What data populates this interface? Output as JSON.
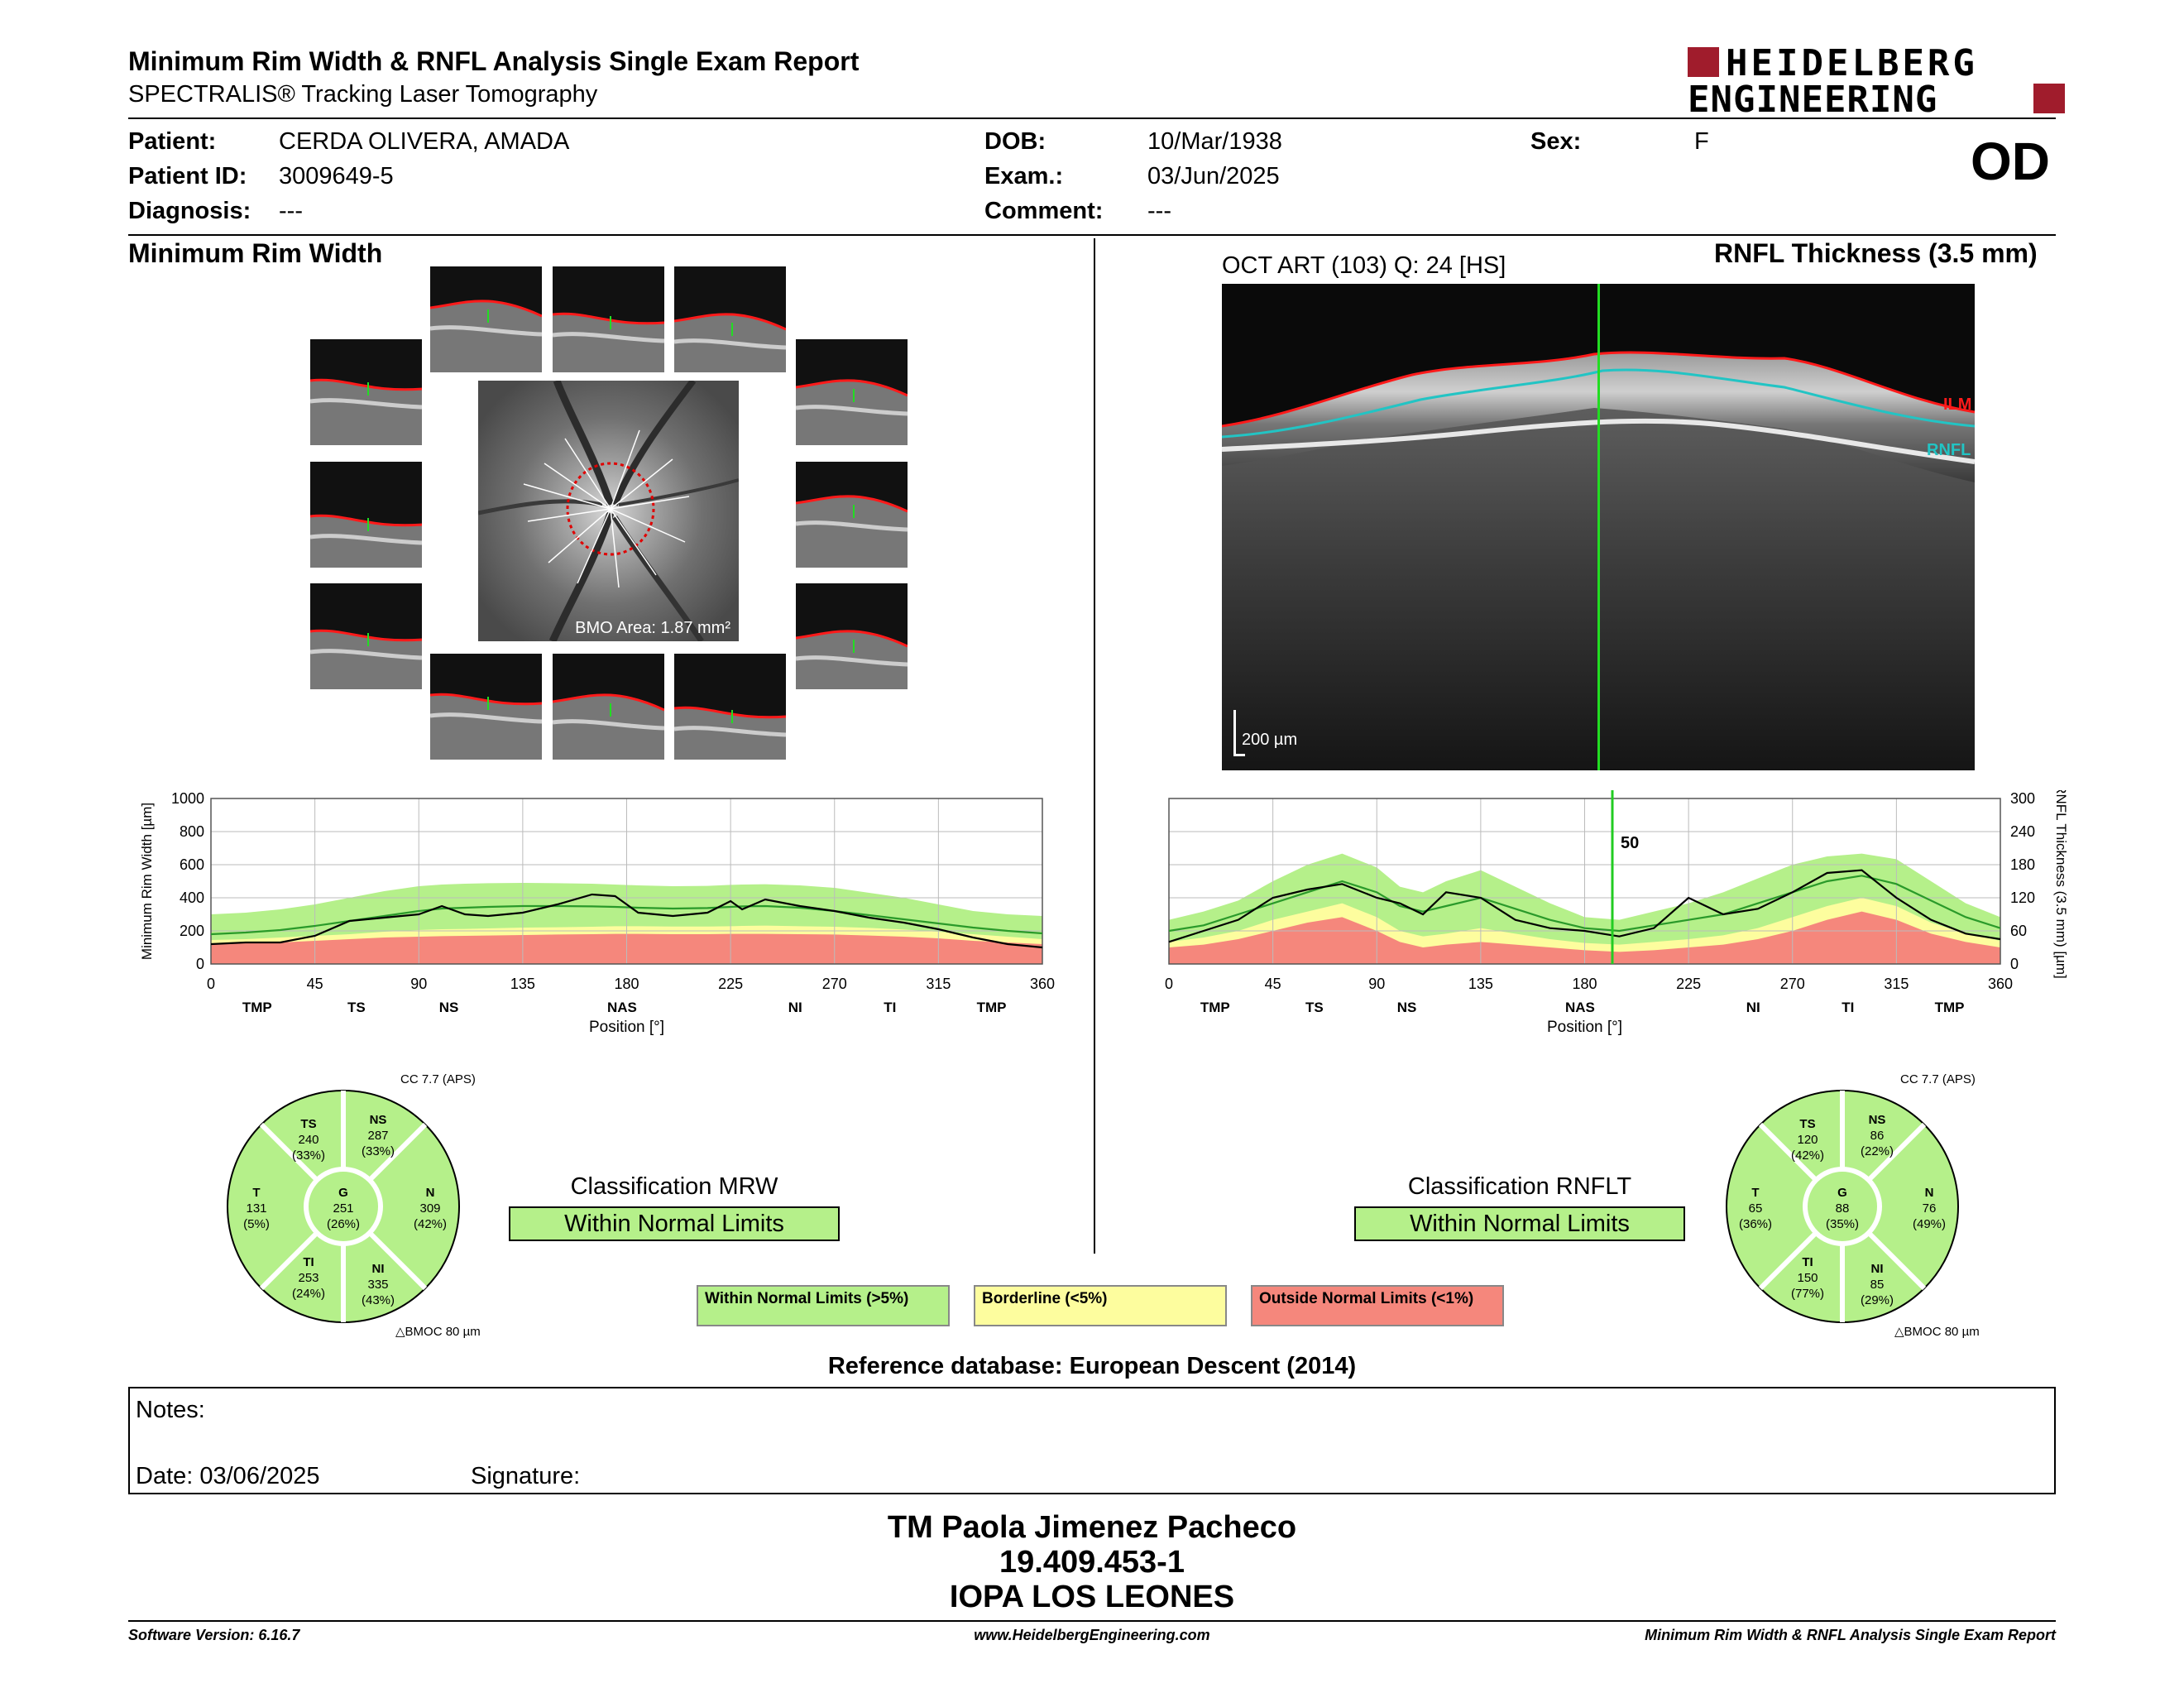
{
  "header": {
    "title": "Minimum Rim Width & RNFL Analysis Single Exam Report",
    "subtitle": "SPECTRALIS® Tracking Laser Tomography",
    "logo_line1": "HEIDELBERG",
    "logo_line2": "ENGINEERING",
    "brand_color": "#a01c2c"
  },
  "patient": {
    "patient_label": "Patient:",
    "patient_value": "CERDA OLIVERA, AMADA",
    "id_label": "Patient ID:",
    "id_value": "3009649-5",
    "diagnosis_label": "Diagnosis:",
    "diagnosis_value": "---",
    "dob_label": "DOB:",
    "dob_value": "10/Mar/1938",
    "exam_label": "Exam.:",
    "exam_value": "03/Jun/2025",
    "comment_label": "Comment:",
    "comment_value": "---",
    "sex_label": "Sex:",
    "sex_value": "F",
    "eye": "OD"
  },
  "mrw": {
    "section_title": "Minimum Rim Width",
    "bmo_area": "BMO Area: 1.87 mm²",
    "classification_label": "Classification MRW",
    "classification_value": "Within Normal Limits",
    "cc_label": "CC 7.7 (APS)",
    "bmoc_label": "BMOC 80 µm",
    "sectors": {
      "TS": {
        "name": "TS",
        "value": "240",
        "pct": "(33%)"
      },
      "NS": {
        "name": "NS",
        "value": "287",
        "pct": "(33%)"
      },
      "T": {
        "name": "T",
        "value": "131",
        "pct": "(5%)"
      },
      "G": {
        "name": "G",
        "value": "251",
        "pct": "(26%)"
      },
      "N": {
        "name": "N",
        "value": "309",
        "pct": "(42%)"
      },
      "TI": {
        "name": "TI",
        "value": "253",
        "pct": "(24%)"
      },
      "NI": {
        "name": "NI",
        "value": "335",
        "pct": "(43%)"
      }
    }
  },
  "rnfl": {
    "section_title": "RNFL Thickness (3.5 mm)",
    "scan_label": "OCT ART (103) Q: 24 [HS]",
    "ilm_label": "ILM",
    "rnfl_label": "RNFL",
    "scale_label": "200 µm",
    "classification_label": "Classification RNFLT",
    "classification_value": "Within Normal Limits",
    "cc_label": "CC 7.7 (APS)",
    "bmoc_label": "BMOC 80 µm",
    "cursor_value": "50",
    "sectors": {
      "TS": {
        "name": "TS",
        "value": "120",
        "pct": "(42%)"
      },
      "NS": {
        "name": "NS",
        "value": "86",
        "pct": "(22%)"
      },
      "T": {
        "name": "T",
        "value": "65",
        "pct": "(36%)"
      },
      "G": {
        "name": "G",
        "value": "88",
        "pct": "(35%)"
      },
      "N": {
        "name": "N",
        "value": "76",
        "pct": "(49%)"
      },
      "TI": {
        "name": "TI",
        "value": "150",
        "pct": "(77%)"
      },
      "NI": {
        "name": "NI",
        "value": "85",
        "pct": "(29%)"
      }
    }
  },
  "legend": {
    "normal": "Within Normal Limits (>5%)",
    "borderline": "Borderline (<5%)",
    "outside": "Outside Normal Limits (<1%)",
    "normal_color": "#b5f08a",
    "borderline_color": "#fdfd9e",
    "outside_color": "#f5877c"
  },
  "reference": "Reference database: European Descent (2014)",
  "notes": {
    "notes_label": "Notes:",
    "date_label": "Date: 03/06/2025",
    "signature_label": "Signature:"
  },
  "stamp": {
    "line1": "TM Paola Jimenez Pacheco",
    "line2": "19.409.453-1",
    "line3": "IOPA LOS LEONES"
  },
  "footer": {
    "software": "Software Version: 6.16.7",
    "url": "www.HeidelbergEngineering.com",
    "report": "Minimum Rim Width & RNFL Analysis Single Exam Report"
  },
  "chart_data": [
    {
      "type": "line",
      "title": "",
      "ylabel": "Minimum Rim Width [µm]",
      "xlabel": "Position [°]",
      "xlim": [
        0,
        360
      ],
      "ylim": [
        0,
        1000
      ],
      "x_ticks": [
        0,
        45,
        90,
        135,
        180,
        225,
        270,
        315,
        360
      ],
      "y_ticks": [
        0,
        200,
        400,
        600,
        800,
        1000
      ],
      "sector_labels": [
        "TMP",
        "TS",
        "NS",
        "NAS",
        "NI",
        "TI",
        "TMP"
      ],
      "sector_positions": [
        20,
        63,
        103,
        178,
        253,
        294,
        338
      ],
      "x": [
        0,
        15,
        30,
        45,
        60,
        75,
        90,
        100,
        110,
        120,
        135,
        150,
        165,
        175,
        185,
        200,
        215,
        225,
        230,
        240,
        255,
        270,
        285,
        300,
        315,
        330,
        345,
        360
      ],
      "series": [
        {
          "name": "",
          "band": "outside",
          "values": [
            120,
            125,
            130,
            140,
            150,
            160,
            165,
            168,
            170,
            172,
            175,
            178,
            180,
            182,
            182,
            180,
            180,
            182,
            182,
            182,
            180,
            178,
            172,
            165,
            155,
            140,
            130,
            120
          ]
        },
        {
          "name": "",
          "band": "borderline",
          "values": [
            145,
            150,
            160,
            170,
            180,
            195,
            205,
            210,
            212,
            215,
            220,
            222,
            225,
            228,
            228,
            226,
            226,
            228,
            230,
            232,
            228,
            225,
            218,
            208,
            195,
            180,
            165,
            150
          ]
        },
        {
          "name": "",
          "band": "normal",
          "values": [
            300,
            310,
            330,
            360,
            400,
            440,
            470,
            480,
            485,
            488,
            490,
            488,
            485,
            480,
            475,
            470,
            472,
            478,
            480,
            482,
            475,
            460,
            430,
            400,
            360,
            320,
            300,
            290
          ]
        },
        {
          "name": "",
          "values": [
            180,
            190,
            205,
            230,
            260,
            290,
            320,
            335,
            340,
            345,
            350,
            350,
            348,
            345,
            340,
            335,
            338,
            345,
            348,
            350,
            340,
            320,
            295,
            270,
            245,
            220,
            200,
            185
          ]
        },
        {
          "name": "",
          "values": [
            120,
            130,
            130,
            170,
            260,
            280,
            300,
            350,
            300,
            290,
            310,
            360,
            420,
            410,
            310,
            290,
            310,
            380,
            330,
            390,
            350,
            320,
            280,
            250,
            210,
            160,
            120,
            100
          ]
        }
      ]
    },
    {
      "type": "line",
      "title": "",
      "ylabel": "RNFL Thickness (3.5 mm) [µm]",
      "xlabel": "Position [°]",
      "xlim": [
        0,
        360
      ],
      "ylim": [
        0,
        300
      ],
      "x_ticks": [
        0,
        45,
        90,
        135,
        180,
        225,
        270,
        315,
        360
      ],
      "y_ticks": [
        0,
        60,
        120,
        180,
        240,
        300
      ],
      "sector_labels": [
        "TMP",
        "TS",
        "NS",
        "NAS",
        "NI",
        "TI",
        "TMP"
      ],
      "sector_positions": [
        20,
        63,
        103,
        178,
        253,
        294,
        338
      ],
      "cursor_position": 192,
      "x": [
        0,
        15,
        30,
        45,
        60,
        75,
        90,
        100,
        110,
        120,
        135,
        150,
        165,
        180,
        195,
        210,
        225,
        240,
        255,
        270,
        285,
        300,
        315,
        330,
        345,
        360
      ],
      "series": [
        {
          "name": "",
          "band": "outside",
          "values": [
            30,
            35,
            45,
            60,
            75,
            85,
            60,
            40,
            30,
            35,
            40,
            35,
            30,
            25,
            22,
            25,
            30,
            35,
            45,
            60,
            80,
            95,
            80,
            55,
            40,
            30
          ]
        },
        {
          "name": "",
          "band": "borderline",
          "values": [
            40,
            48,
            60,
            80,
            95,
            110,
            85,
            60,
            50,
            55,
            65,
            55,
            45,
            38,
            35,
            40,
            45,
            52,
            65,
            85,
            105,
            120,
            105,
            75,
            55,
            42
          ]
        },
        {
          "name": "",
          "band": "normal",
          "values": [
            80,
            95,
            115,
            150,
            180,
            200,
            175,
            140,
            130,
            150,
            170,
            140,
            110,
            85,
            80,
            95,
            110,
            130,
            155,
            180,
            195,
            200,
            190,
            150,
            110,
            85
          ]
        },
        {
          "name": "",
          "values": [
            60,
            70,
            90,
            110,
            130,
            150,
            130,
            105,
            95,
            105,
            120,
            100,
            80,
            65,
            60,
            70,
            80,
            90,
            110,
            130,
            150,
            160,
            145,
            115,
            85,
            65
          ]
        },
        {
          "name": "",
          "values": [
            40,
            60,
            80,
            120,
            135,
            145,
            120,
            110,
            90,
            130,
            120,
            80,
            65,
            60,
            50,
            65,
            120,
            90,
            100,
            130,
            165,
            170,
            120,
            80,
            55,
            45
          ]
        }
      ]
    }
  ]
}
